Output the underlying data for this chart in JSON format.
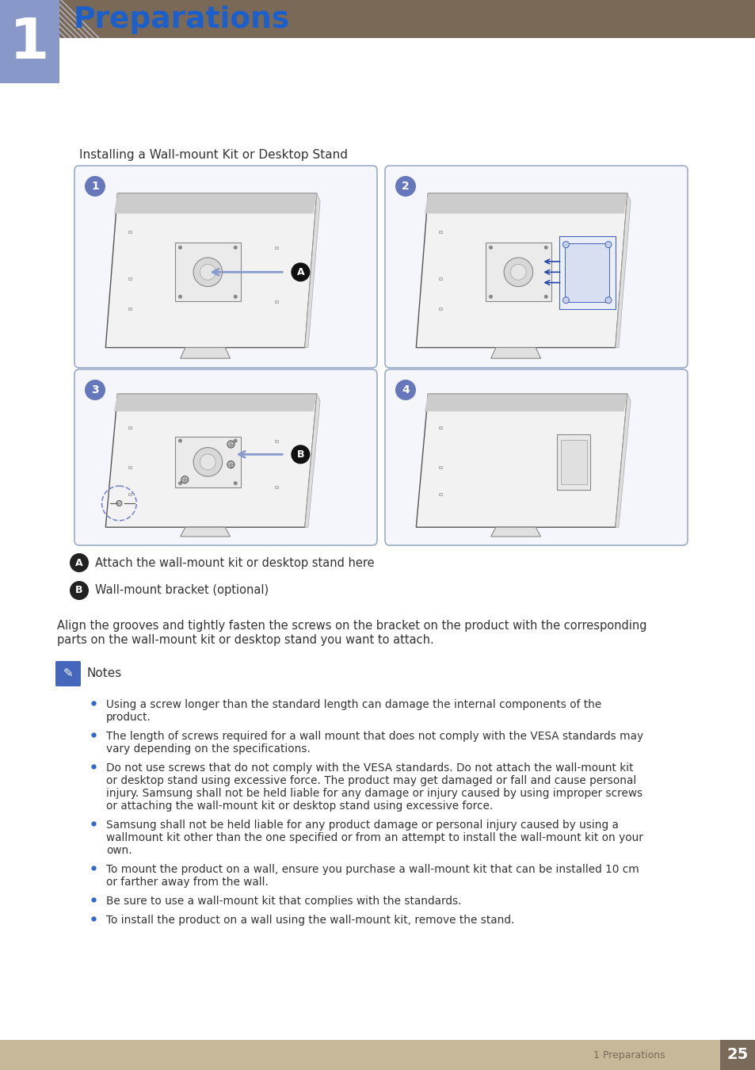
{
  "page_bg": "#ffffff",
  "header_bar_color": "#7a6957",
  "header_number_box_color": "#8898c8",
  "header_number": "1",
  "header_title": "Preparations",
  "header_title_color": "#1a5fcc",
  "footer_bar_color": "#c8b89a",
  "footer_text": "1 Preparations",
  "footer_text_color": "#7a6a5a",
  "footer_number": "25",
  "footer_number_box_color": "#7a6a5a",
  "footer_number_color": "#ffffff",
  "section_title": "Installing a Wall-mount Kit or Desktop Stand",
  "section_title_color": "#333333",
  "diagram_border_color": "#9aabcc",
  "step_circle_color": "#6677bb",
  "step_circle_text_color": "#ffffff",
  "label_A_text": "Attach the wall-mount kit or desktop stand here",
  "label_B_text": "Wall-mount bracket (optional)",
  "label_text_color": "#333333",
  "para_line1": "Align the grooves and tightly fasten the screws on the bracket on the product with the corresponding",
  "para_line2": "parts on the wall-mount kit or desktop stand you want to attach.",
  "para_text_color": "#333333",
  "notes_title": "Notes",
  "bullet_color": "#3366cc",
  "bullet_text_color": "#333333",
  "bullets": [
    [
      "Using a screw longer than the standard length can damage the internal components of the",
      "product."
    ],
    [
      "The length of screws required for a wall mount that does not comply with the VESA standards may",
      "vary depending on the specifications."
    ],
    [
      "Do not use screws that do not comply with the VESA standards. Do not attach the wall-mount kit",
      "or desktop stand using excessive force. The product may get damaged or fall and cause personal",
      "injury. Samsung shall not be held liable for any damage or injury caused by using improper screws",
      "or attaching the wall-mount kit or desktop stand using excessive force."
    ],
    [
      "Samsung shall not be held liable for any product damage or personal injury caused by using a",
      "wallmount kit other than the one specified or from an attempt to install the wall-mount kit on your",
      "own."
    ],
    [
      "To mount the product on a wall, ensure you purchase a wall-mount kit that can be installed 10 cm",
      "or farther away from the wall."
    ],
    [
      "Be sure to use a wall-mount kit that complies with the standards."
    ],
    [
      "To install the product on a wall using the wall-mount kit, remove the stand."
    ]
  ],
  "stripe_color": "#c8d0e8"
}
